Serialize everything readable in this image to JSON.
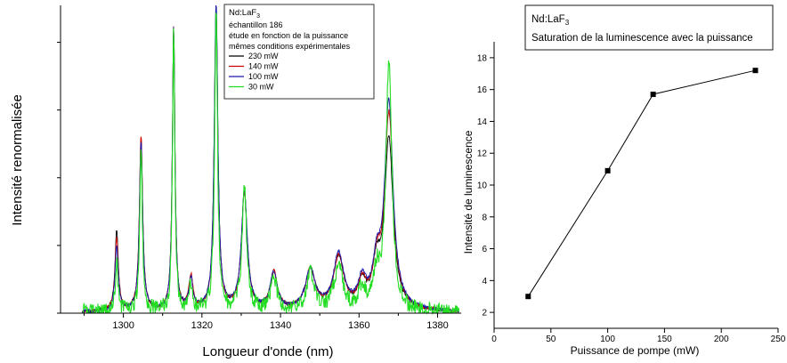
{
  "chart_data": [
    {
      "type": "line",
      "title": "",
      "xlabel": "Longueur d'onde (nm)",
      "ylabel": "Intensité renormalisée",
      "xlim": [
        1284,
        1386
      ],
      "ylim": [
        0,
        1.0
      ],
      "x_ticks": [
        1300,
        1320,
        1340,
        1360,
        1380
      ],
      "y_ticks_labeled": false,
      "grid": false,
      "legend_placement": "top-center",
      "annotation": {
        "sample_prefix": "Nd:LaF",
        "sample_sub": "3",
        "lines": [
          "échantillon 186",
          "étude en fonction de la puissance",
          "mêmes conditions expérimentales"
        ]
      },
      "series": [
        {
          "name": "230 mW",
          "color": "#000000",
          "peaks": [
            [
              1298.3,
              0.26,
              0.5
            ],
            [
              1304.5,
              0.56,
              0.5
            ],
            [
              1312.8,
              0.92,
              0.4
            ],
            [
              1317.2,
              0.1,
              0.6
            ],
            [
              1323.6,
              0.99,
              0.55
            ],
            [
              1330.8,
              0.38,
              0.9
            ],
            [
              1338.3,
              0.12,
              1.1
            ],
            [
              1347.6,
              0.13,
              1.5
            ],
            [
              1354.8,
              0.17,
              1.6
            ],
            [
              1360.8,
              0.08,
              1.2
            ],
            [
              1364.5,
              0.13,
              1.2
            ],
            [
              1367.6,
              0.55,
              1.3
            ]
          ]
        },
        {
          "name": "140 mW",
          "color": "#cc0000",
          "peaks": [
            [
              1298.3,
              0.24,
              0.5
            ],
            [
              1304.5,
              0.57,
              0.5
            ],
            [
              1312.8,
              0.92,
              0.4
            ],
            [
              1317.2,
              0.11,
              0.6
            ],
            [
              1323.6,
              0.96,
              0.55
            ],
            [
              1330.8,
              0.38,
              0.9
            ],
            [
              1338.3,
              0.12,
              1.1
            ],
            [
              1347.6,
              0.13,
              1.5
            ],
            [
              1354.8,
              0.17,
              1.6
            ],
            [
              1360.8,
              0.08,
              1.2
            ],
            [
              1364.5,
              0.13,
              1.2
            ],
            [
              1367.6,
              0.63,
              1.3
            ]
          ]
        },
        {
          "name": "100 mW",
          "color": "#1a1aaa",
          "peaks": [
            [
              1298.3,
              0.21,
              0.5
            ],
            [
              1304.5,
              0.55,
              0.5
            ],
            [
              1312.8,
              0.92,
              0.4
            ],
            [
              1317.2,
              0.1,
              0.6
            ],
            [
              1323.6,
              1.0,
              0.55
            ],
            [
              1330.8,
              0.39,
              0.9
            ],
            [
              1338.3,
              0.12,
              1.1
            ],
            [
              1347.6,
              0.13,
              1.5
            ],
            [
              1354.8,
              0.18,
              1.6
            ],
            [
              1360.8,
              0.09,
              1.2
            ],
            [
              1364.5,
              0.13,
              1.2
            ],
            [
              1367.6,
              0.67,
              1.3
            ]
          ]
        },
        {
          "name": "30 mW",
          "color": "#22dd22",
          "peaks": [
            [
              1298.3,
              0.17,
              0.35
            ],
            [
              1304.5,
              0.52,
              0.4
            ],
            [
              1312.8,
              0.92,
              0.35
            ],
            [
              1317.2,
              0.09,
              0.5
            ],
            [
              1323.6,
              0.97,
              0.45
            ],
            [
              1330.8,
              0.4,
              0.7
            ],
            [
              1338.3,
              0.11,
              0.9
            ],
            [
              1347.6,
              0.12,
              1.2
            ],
            [
              1354.8,
              0.15,
              1.3
            ],
            [
              1360.8,
              0.07,
              1.0
            ],
            [
              1364.5,
              0.11,
              1.0
            ],
            [
              1367.6,
              0.81,
              0.9
            ]
          ]
        }
      ]
    },
    {
      "type": "line",
      "title": "Saturation de la luminescence avec la puissance",
      "title_prefix": "Nd:LaF",
      "title_sub": "3",
      "xlabel": "Puissance de pompe (mW)",
      "ylabel": "Intensité de luminescence",
      "xlim": [
        0,
        250
      ],
      "ylim": [
        1,
        19
      ],
      "x_ticks": [
        0,
        50,
        100,
        150,
        200,
        250
      ],
      "y_ticks": [
        2,
        4,
        6,
        8,
        10,
        12,
        14,
        16,
        18
      ],
      "grid": false,
      "x": [
        30,
        100,
        140,
        230
      ],
      "y": [
        3.0,
        10.9,
        15.7,
        17.2
      ],
      "marker": "square",
      "color": "#000000"
    }
  ]
}
